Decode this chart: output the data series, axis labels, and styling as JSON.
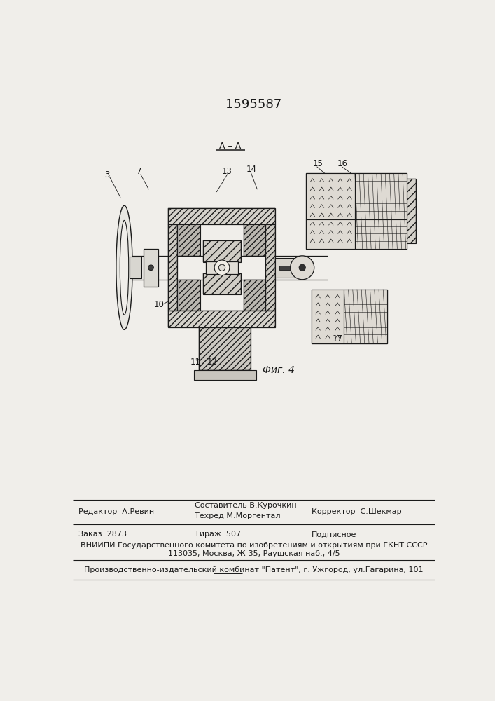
{
  "patent_number": "1595587",
  "fig_label": "Фиг. 4",
  "section_label": "А – А",
  "bg_color": "#f0eeea",
  "line_color": "#1a1a1a",
  "footer": {
    "editor_label": "Редактор  А.Ревин",
    "composer_label": "Составитель В.Курочкин",
    "techred_label": "Техред М.Моргентал",
    "corrector_label": "Корректор  С.Шекмар",
    "order_label": "Заказ  2873",
    "tirage_label": "Тираж  507",
    "podpisnoe_label": "Подписное",
    "vniipи_line1": "ВНИИПИ Государственного комитета по изобретениям и открытиям при ГКНТ СССР",
    "vniipи_line2": "113035, Москва, Ж-35, Раушская наб., 4/5",
    "factory_line": "Производственно-издательский комбинат \"Патент\", г. Ужгород, ул.Гагарина, 101"
  }
}
